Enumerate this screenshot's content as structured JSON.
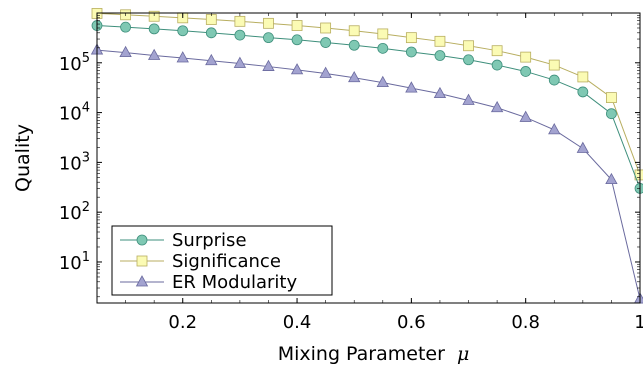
{
  "chart_data": {
    "type": "line",
    "xlabel": "Mixing Parameter",
    "xlabel_symbol": "μ",
    "ylabel": "Quality",
    "y_scale": "log",
    "xlim": [
      0.05,
      1.0
    ],
    "ylim": [
      1.5,
      1000000
    ],
    "x_ticks": [
      {
        "value": 0.2,
        "label": "0.2"
      },
      {
        "value": 0.4,
        "label": "0.4"
      },
      {
        "value": 0.6,
        "label": "0.6"
      },
      {
        "value": 0.8,
        "label": "0.8"
      },
      {
        "value": 1.0,
        "label": "1"
      }
    ],
    "y_ticks": [
      {
        "value": 10,
        "base": "10",
        "exp": "1"
      },
      {
        "value": 100,
        "base": "10",
        "exp": "2"
      },
      {
        "value": 1000,
        "base": "10",
        "exp": "3"
      },
      {
        "value": 10000,
        "base": "10",
        "exp": "4"
      },
      {
        "value": 100000,
        "base": "10",
        "exp": "5"
      }
    ],
    "legend_position": "bottom-left",
    "grid": false,
    "x": [
      0.05,
      0.1,
      0.15,
      0.2,
      0.25,
      0.3,
      0.35,
      0.4,
      0.45,
      0.5,
      0.55,
      0.6,
      0.65,
      0.7,
      0.75,
      0.8,
      0.85,
      0.9,
      0.95,
      1.0
    ],
    "series": [
      {
        "name": "Surprise",
        "marker": "circle",
        "fill": "#7fc8b3",
        "stroke": "#3e8f7c",
        "values": [
          560000,
          520000,
          480000,
          440000,
          400000,
          360000,
          320000,
          290000,
          255000,
          225000,
          195000,
          165000,
          140000,
          115000,
          90000,
          67000,
          45000,
          26000,
          9500,
          300
        ]
      },
      {
        "name": "Significance",
        "marker": "square",
        "fill": "#fbfbb4",
        "stroke": "#b8ae60",
        "values": [
          980000,
          920000,
          860000,
          800000,
          740000,
          680000,
          620000,
          560000,
          500000,
          440000,
          380000,
          320000,
          270000,
          220000,
          175000,
          130000,
          90000,
          52000,
          20000,
          560
        ]
      },
      {
        "name": "ER Modularity",
        "marker": "triangle",
        "fill": "#a3a3d0",
        "stroke": "#6a6a9e",
        "values": [
          180000,
          160000,
          140000,
          125000,
          110000,
          97000,
          84000,
          72000,
          61000,
          50000,
          40000,
          31000,
          24000,
          17500,
          12500,
          8000,
          4500,
          1900,
          450,
          1.8
        ]
      }
    ]
  }
}
